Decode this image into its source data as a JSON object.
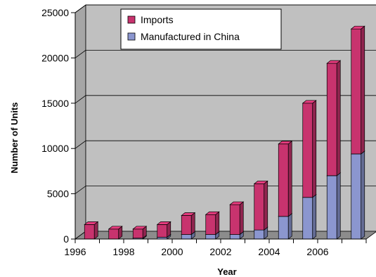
{
  "chart_data": {
    "type": "bar",
    "stacked": true,
    "three_d": true,
    "xlabel": "Year",
    "ylabel": "Number of Units",
    "ylim": [
      0,
      25000
    ],
    "yticks": [
      0,
      5000,
      10000,
      15000,
      20000,
      25000
    ],
    "categories": [
      "1996",
      "1997",
      "1998",
      "1999",
      "2000",
      "2001",
      "2002",
      "2003",
      "2004",
      "2005",
      "2006",
      "2007"
    ],
    "x_tick_labels": [
      "1996",
      "1998",
      "2000",
      "2002",
      "2004",
      "2006"
    ],
    "grid": true,
    "legend_position": "top-center",
    "series": [
      {
        "name": "Manufactured in China",
        "color": "#8b96cf",
        "values": [
          0,
          0,
          100,
          200,
          500,
          500,
          500,
          1000,
          2500,
          4600,
          7000,
          9400
        ]
      },
      {
        "name": "Imports",
        "color": "#c8336e",
        "values": [
          1600,
          1100,
          1000,
          1400,
          2100,
          2200,
          3300,
          5100,
          8000,
          10400,
          12400,
          13800
        ]
      }
    ],
    "legend": [
      "Imports",
      "Manufactured in China"
    ],
    "colors": {
      "plot_back": "#c0c0c0",
      "plot_side": "#a6a6a6",
      "floor": "#8c8c8c"
    }
  }
}
